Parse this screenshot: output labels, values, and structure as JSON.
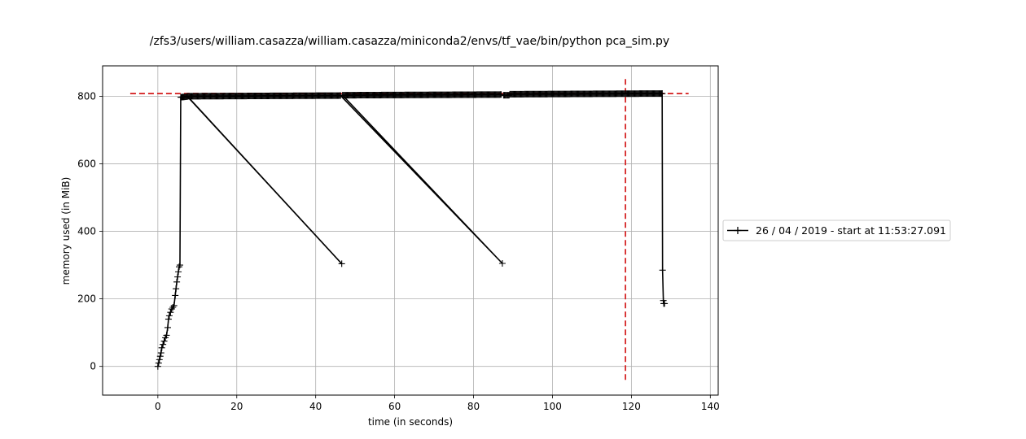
{
  "chart_data": {
    "type": "line",
    "title": "/zfs3/users/william.casazza/william.casazza/miniconda2/envs/tf_vae/bin/python pca_sim.py",
    "xlabel": "time (in seconds)",
    "ylabel": "memory used (in MiB)",
    "xlim": [
      -14,
      142
    ],
    "ylim": [
      -85,
      890
    ],
    "xticks": [
      0,
      20,
      40,
      60,
      80,
      100,
      120,
      140
    ],
    "yticks": [
      0,
      200,
      400,
      600,
      800
    ],
    "grid": true,
    "legend_position": "right",
    "series": [
      {
        "name": "26 / 04 / 2019 - start at 11:53:27.091",
        "color": "#000000",
        "marker": "+",
        "ramp_points": [
          [
            0.0,
            0
          ],
          [
            0.2,
            10
          ],
          [
            0.4,
            20
          ],
          [
            0.6,
            30
          ],
          [
            0.8,
            40
          ],
          [
            1.0,
            55
          ],
          [
            1.3,
            65
          ],
          [
            1.6,
            75
          ],
          [
            1.9,
            85
          ],
          [
            2.2,
            92
          ],
          [
            2.5,
            115
          ],
          [
            2.7,
            140
          ],
          [
            2.9,
            150
          ],
          [
            3.2,
            160
          ],
          [
            3.5,
            170
          ],
          [
            3.8,
            175
          ],
          [
            4.1,
            180
          ],
          [
            4.4,
            210
          ],
          [
            4.6,
            230
          ],
          [
            4.8,
            250
          ],
          [
            5.0,
            265
          ],
          [
            5.2,
            280
          ],
          [
            5.4,
            295
          ],
          [
            5.6,
            300
          ]
        ],
        "segments": [
          {
            "x_start": 5.8,
            "x_end": 7.5,
            "y_start": 797,
            "y_end": 799
          },
          {
            "x_start": 7.5,
            "x_end": 46.3,
            "y_start": 800,
            "y_end": 802
          },
          {
            "x_start": 46.8,
            "x_end": 87.0,
            "y_start": 803,
            "y_end": 805
          },
          {
            "x_start": 87.6,
            "x_end": 89.0,
            "y_start": 803,
            "y_end": 803
          },
          {
            "x_start": 89.2,
            "x_end": 127.8,
            "y_start": 806,
            "y_end": 808
          }
        ],
        "dips": [
          {
            "x": 46.6,
            "y_low": 304
          },
          {
            "x": 87.3,
            "y_low": 305
          }
        ],
        "tail_points": [
          [
            127.8,
            808
          ],
          [
            127.9,
            285
          ],
          [
            128.1,
            195
          ],
          [
            128.2,
            186
          ],
          [
            128.4,
            186
          ]
        ]
      }
    ],
    "annotations": [
      {
        "kind": "hline",
        "y": 808,
        "x_from": -7,
        "x_to": 134.5,
        "color": "#d62728",
        "style": "dashed"
      },
      {
        "kind": "vline",
        "x": 118.5,
        "y_from": -40,
        "y_to": 855,
        "color": "#d62728",
        "style": "dashed"
      }
    ]
  }
}
